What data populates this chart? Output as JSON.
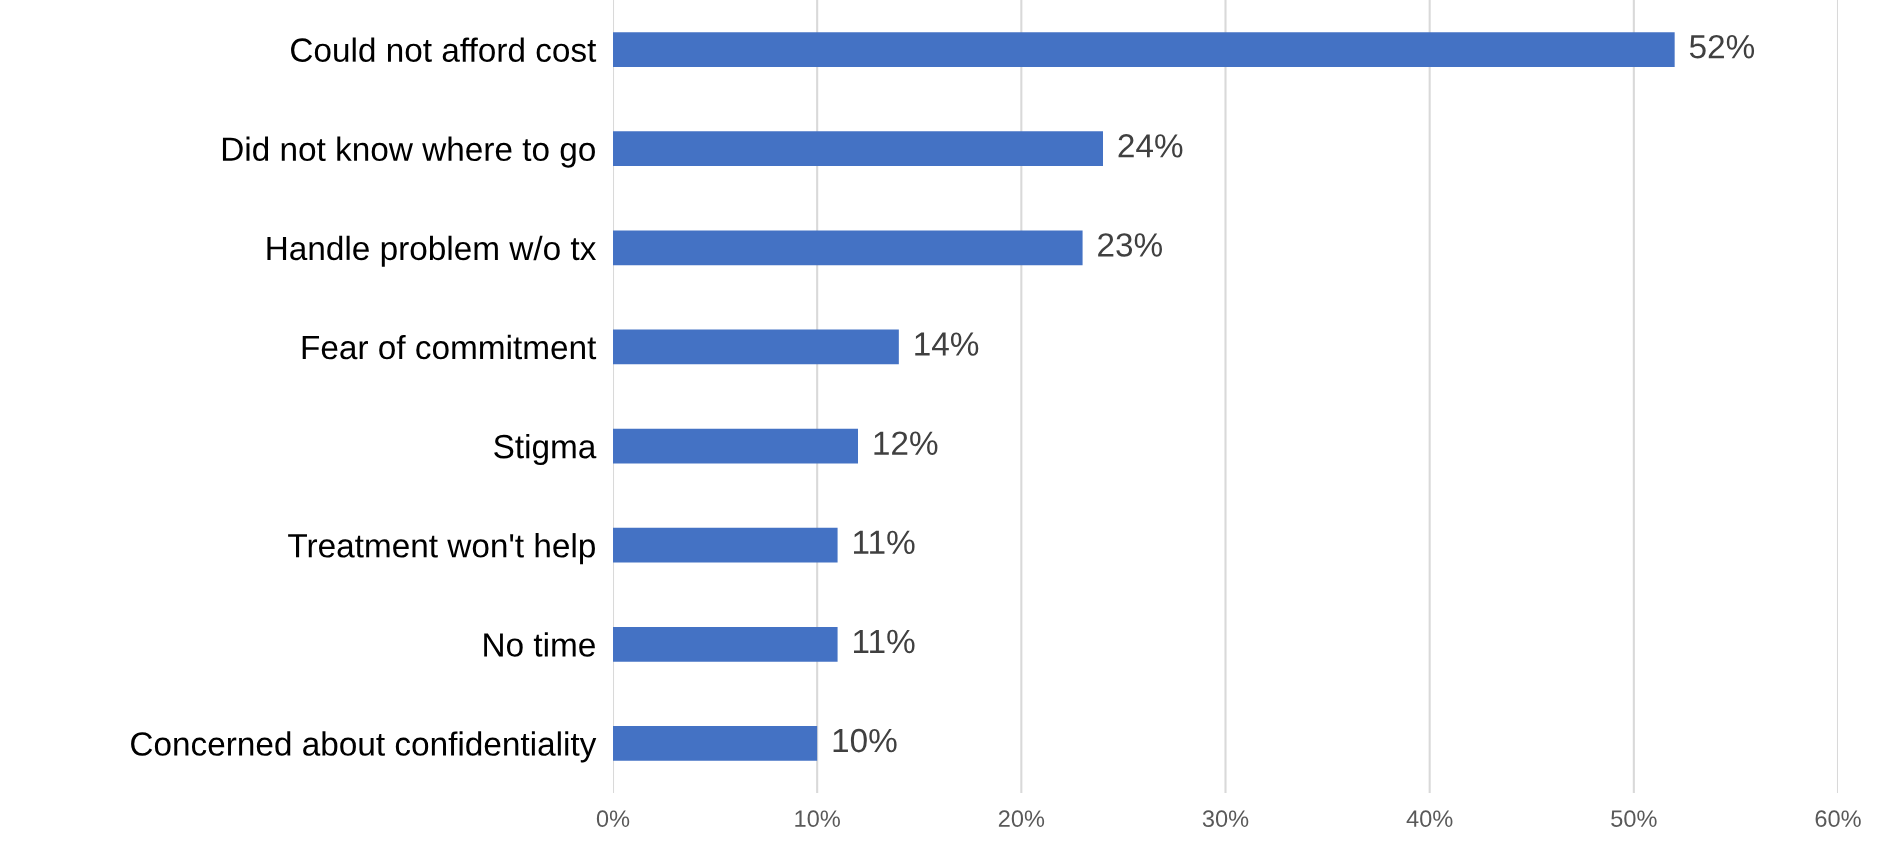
{
  "chart_data": {
    "type": "bar",
    "orientation": "horizontal",
    "categories": [
      "Could not afford cost",
      "Did not know where to go",
      "Handle problem w/o tx",
      "Fear of commitment",
      "Stigma",
      "Treatment won't help",
      "No time",
      "Concerned about confidentiality"
    ],
    "values": [
      52,
      24,
      23,
      14,
      12,
      11,
      11,
      10
    ],
    "value_labels": [
      "52%",
      "24%",
      "23%",
      "14%",
      "12%",
      "11%",
      "11%",
      "10%"
    ],
    "color": "#4472c4",
    "xlim": [
      0,
      60
    ],
    "xticks": [
      {
        "value": 0,
        "label": "0%"
      },
      {
        "value": 10,
        "label": "10%"
      },
      {
        "value": 20,
        "label": "20%"
      },
      {
        "value": 30,
        "label": "30%"
      },
      {
        "value": 40,
        "label": "40%"
      },
      {
        "value": 50,
        "label": "50%"
      },
      {
        "value": 60,
        "label": "60%"
      }
    ],
    "grid": "x"
  }
}
